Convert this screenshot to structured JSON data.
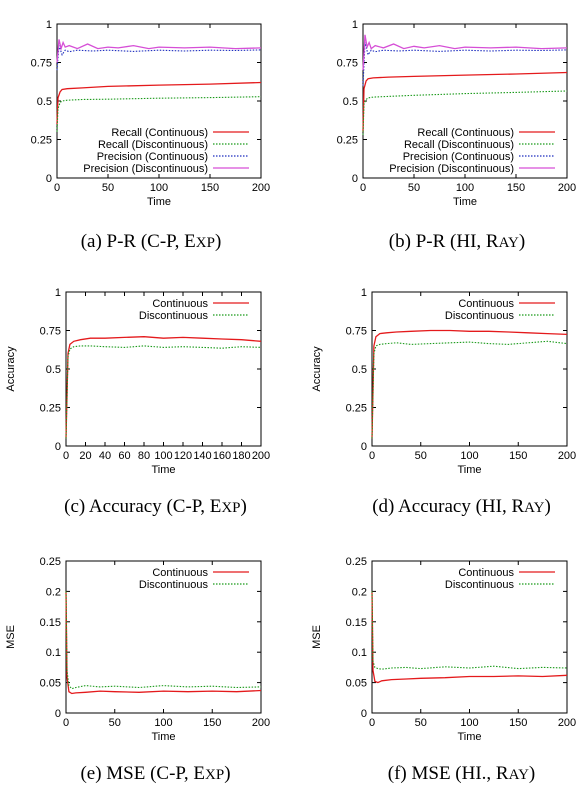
{
  "chart_data": [
    {
      "id": "a",
      "type": "line",
      "caption": "(a) P-R (C-P, Exp)",
      "xlabel": "Time",
      "ylabel": "",
      "xlim": [
        0,
        200
      ],
      "ylim": [
        0,
        1
      ],
      "xticks": [
        "0",
        "50",
        "100",
        "150",
        "200"
      ],
      "yticks": [
        "0",
        "0.25",
        "0.5",
        "0.75",
        "1"
      ],
      "xtick_values": [
        0,
        50,
        100,
        150,
        200
      ],
      "ytick_values": [
        0,
        0.25,
        0.5,
        0.75,
        1
      ],
      "legend": "bottom-right",
      "series": [
        {
          "name": "Recall (Continuous)",
          "color": "#e41a1c",
          "dash": "solid",
          "x": [
            0,
            1,
            3,
            5,
            10,
            25,
            50,
            100,
            150,
            200
          ],
          "y": [
            0.35,
            0.52,
            0.56,
            0.575,
            0.58,
            0.585,
            0.595,
            0.603,
            0.61,
            0.62
          ]
        },
        {
          "name": "Recall (Discontinuous)",
          "color": "#1a9a1a",
          "dash": "dot",
          "x": [
            0,
            1,
            3,
            5,
            10,
            25,
            50,
            100,
            150,
            200
          ],
          "y": [
            0.3,
            0.45,
            0.49,
            0.5,
            0.505,
            0.51,
            0.512,
            0.518,
            0.522,
            0.528
          ]
        },
        {
          "name": "Precision (Continuous)",
          "color": "#1f2fbf",
          "dash": "dot",
          "x": [
            0,
            2,
            5,
            8,
            12,
            20,
            35,
            50,
            75,
            100,
            125,
            150,
            175,
            200
          ],
          "y": [
            0.7,
            0.86,
            0.8,
            0.83,
            0.82,
            0.83,
            0.825,
            0.83,
            0.822,
            0.83,
            0.825,
            0.83,
            0.828,
            0.832
          ]
        },
        {
          "name": "Precision (Discontinuous)",
          "color": "#d64fd6",
          "dash": "solid",
          "x": [
            0,
            2,
            4,
            6,
            8,
            12,
            20,
            30,
            40,
            50,
            60,
            75,
            90,
            100,
            125,
            150,
            175,
            200
          ],
          "y": [
            0.75,
            0.9,
            0.84,
            0.88,
            0.85,
            0.86,
            0.84,
            0.87,
            0.84,
            0.85,
            0.845,
            0.86,
            0.84,
            0.85,
            0.845,
            0.85,
            0.84,
            0.845
          ]
        }
      ]
    },
    {
      "id": "b",
      "type": "line",
      "caption": "(b) P-R (HI, Ray)",
      "xlabel": "Time",
      "ylabel": "",
      "xlim": [
        0,
        200
      ],
      "ylim": [
        0,
        1
      ],
      "xticks": [
        "0",
        "50",
        "100",
        "150",
        "200"
      ],
      "yticks": [
        "0",
        "0.25",
        "0.5",
        "0.75",
        "1"
      ],
      "xtick_values": [
        0,
        50,
        100,
        150,
        200
      ],
      "ytick_values": [
        0,
        0.25,
        0.5,
        0.75,
        1
      ],
      "legend": "bottom-right",
      "series": [
        {
          "name": "Recall (Continuous)",
          "color": "#e41a1c",
          "dash": "solid",
          "x": [
            0,
            1,
            3,
            5,
            10,
            25,
            50,
            100,
            150,
            200
          ],
          "y": [
            0.3,
            0.58,
            0.63,
            0.645,
            0.65,
            0.655,
            0.66,
            0.668,
            0.675,
            0.685
          ]
        },
        {
          "name": "Recall (Discontinuous)",
          "color": "#1a9a1a",
          "dash": "dot",
          "x": [
            0,
            1,
            3,
            5,
            10,
            25,
            50,
            100,
            150,
            200
          ],
          "y": [
            0.28,
            0.48,
            0.51,
            0.52,
            0.525,
            0.53,
            0.537,
            0.548,
            0.556,
            0.565
          ]
        },
        {
          "name": "Precision (Continuous)",
          "color": "#1f2fbf",
          "dash": "dot",
          "x": [
            0,
            2,
            5,
            8,
            12,
            20,
            35,
            50,
            75,
            100,
            125,
            150,
            175,
            200
          ],
          "y": [
            0.6,
            0.88,
            0.8,
            0.83,
            0.82,
            0.83,
            0.825,
            0.83,
            0.822,
            0.83,
            0.825,
            0.83,
            0.828,
            0.832
          ]
        },
        {
          "name": "Precision (Discontinuous)",
          "color": "#d64fd6",
          "dash": "solid",
          "x": [
            0,
            2,
            4,
            6,
            8,
            12,
            20,
            30,
            40,
            50,
            60,
            75,
            90,
            100,
            125,
            150,
            175,
            200
          ],
          "y": [
            0.7,
            0.93,
            0.85,
            0.88,
            0.84,
            0.86,
            0.845,
            0.87,
            0.84,
            0.855,
            0.845,
            0.86,
            0.84,
            0.85,
            0.845,
            0.85,
            0.84,
            0.845
          ]
        }
      ]
    },
    {
      "id": "c",
      "type": "line",
      "caption": "(c) Accuracy (C-P, Exp)",
      "xlabel": "Time",
      "ylabel": "Accuracy",
      "xlim": [
        0,
        200
      ],
      "ylim": [
        0,
        1
      ],
      "xticks": [
        "0",
        "20",
        "40",
        "60",
        "80",
        "100",
        "120",
        "140",
        "160",
        "180",
        "200"
      ],
      "yticks": [
        "0",
        "0.25",
        "0.5",
        "0.75",
        "1"
      ],
      "xtick_values": [
        0,
        20,
        40,
        60,
        80,
        100,
        120,
        140,
        160,
        180,
        200
      ],
      "ytick_values": [
        0,
        0.25,
        0.5,
        0.75,
        1
      ],
      "legend": "top-right",
      "series": [
        {
          "name": "Continuous",
          "color": "#e41a1c",
          "dash": "solid",
          "x": [
            0,
            2,
            4,
            8,
            15,
            25,
            40,
            60,
            80,
            100,
            120,
            140,
            160,
            180,
            200
          ],
          "y": [
            0.05,
            0.6,
            0.66,
            0.68,
            0.69,
            0.7,
            0.7,
            0.705,
            0.71,
            0.7,
            0.705,
            0.7,
            0.695,
            0.69,
            0.68
          ]
        },
        {
          "name": "Discontinuous",
          "color": "#1a9a1a",
          "dash": "dot",
          "x": [
            0,
            2,
            4,
            8,
            15,
            25,
            40,
            60,
            80,
            100,
            120,
            140,
            160,
            180,
            200
          ],
          "y": [
            0.05,
            0.58,
            0.63,
            0.645,
            0.65,
            0.65,
            0.645,
            0.64,
            0.65,
            0.64,
            0.645,
            0.64,
            0.635,
            0.645,
            0.64
          ]
        }
      ]
    },
    {
      "id": "d",
      "type": "line",
      "caption": "(d) Accuracy (HI, Ray)",
      "xlabel": "Time",
      "ylabel": "Accuracy",
      "xlim": [
        0,
        200
      ],
      "ylim": [
        0,
        1
      ],
      "xticks": [
        "0",
        "50",
        "100",
        "150",
        "200"
      ],
      "yticks": [
        "0",
        "0.25",
        "0.5",
        "0.75",
        "1"
      ],
      "xtick_values": [
        0,
        50,
        100,
        150,
        200
      ],
      "ytick_values": [
        0,
        0.25,
        0.5,
        0.75,
        1
      ],
      "legend": "top-right",
      "series": [
        {
          "name": "Continuous",
          "color": "#e41a1c",
          "dash": "solid",
          "x": [
            0,
            2,
            4,
            8,
            15,
            25,
            40,
            60,
            80,
            100,
            120,
            140,
            160,
            180,
            200
          ],
          "y": [
            0.05,
            0.65,
            0.71,
            0.73,
            0.735,
            0.74,
            0.745,
            0.75,
            0.75,
            0.745,
            0.745,
            0.74,
            0.735,
            0.73,
            0.725
          ]
        },
        {
          "name": "Discontinuous",
          "color": "#1a9a1a",
          "dash": "dot",
          "x": [
            0,
            2,
            4,
            8,
            15,
            25,
            40,
            60,
            80,
            100,
            120,
            140,
            160,
            180,
            200
          ],
          "y": [
            0.05,
            0.6,
            0.65,
            0.66,
            0.665,
            0.67,
            0.66,
            0.665,
            0.67,
            0.675,
            0.665,
            0.66,
            0.67,
            0.68,
            0.665
          ]
        }
      ]
    },
    {
      "id": "e",
      "type": "line",
      "caption": "(e) MSE (C-P, Exp)",
      "xlabel": "Time",
      "ylabel": "MSE",
      "xlim": [
        0,
        200
      ],
      "ylim": [
        0,
        0.25
      ],
      "xticks": [
        "0",
        "50",
        "100",
        "150",
        "200"
      ],
      "yticks": [
        "0",
        "0.05",
        "0.1",
        "0.15",
        "0.2",
        "0.25"
      ],
      "xtick_values": [
        0,
        50,
        100,
        150,
        200
      ],
      "ytick_values": [
        0,
        0.05,
        0.1,
        0.15,
        0.2,
        0.25
      ],
      "legend": "top-right",
      "series": [
        {
          "name": "Continuous",
          "color": "#e41a1c",
          "dash": "solid",
          "x": [
            0,
            1,
            3,
            6,
            10,
            20,
            35,
            50,
            75,
            100,
            125,
            150,
            175,
            200
          ],
          "y": [
            0.2,
            0.06,
            0.035,
            0.032,
            0.033,
            0.034,
            0.036,
            0.035,
            0.034,
            0.036,
            0.035,
            0.036,
            0.035,
            0.037
          ]
        },
        {
          "name": "Discontinuous",
          "color": "#1a9a1a",
          "dash": "dot",
          "x": [
            0,
            1,
            3,
            6,
            10,
            20,
            35,
            50,
            75,
            100,
            125,
            150,
            175,
            200
          ],
          "y": [
            0.2,
            0.07,
            0.045,
            0.04,
            0.042,
            0.045,
            0.043,
            0.044,
            0.042,
            0.045,
            0.043,
            0.044,
            0.042,
            0.043
          ]
        }
      ]
    },
    {
      "id": "f",
      "type": "line",
      "caption": "(f) MSE (HI., Ray)",
      "xlabel": "Time",
      "ylabel": "MSE",
      "xlim": [
        0,
        200
      ],
      "ylim": [
        0,
        0.25
      ],
      "xticks": [
        "0",
        "50",
        "100",
        "150",
        "200"
      ],
      "yticks": [
        "0",
        "0.05",
        "0.1",
        "0.15",
        "0.2",
        "0.25"
      ],
      "xtick_values": [
        0,
        50,
        100,
        150,
        200
      ],
      "ytick_values": [
        0,
        0.05,
        0.1,
        0.15,
        0.2,
        0.25
      ],
      "legend": "top-right",
      "series": [
        {
          "name": "Continuous",
          "color": "#e41a1c",
          "dash": "solid",
          "x": [
            0,
            1,
            3,
            6,
            10,
            20,
            35,
            50,
            75,
            100,
            125,
            150,
            175,
            200
          ],
          "y": [
            0.2,
            0.07,
            0.052,
            0.05,
            0.053,
            0.055,
            0.056,
            0.057,
            0.058,
            0.06,
            0.06,
            0.061,
            0.06,
            0.062
          ]
        },
        {
          "name": "Discontinuous",
          "color": "#1a9a1a",
          "dash": "dot",
          "x": [
            0,
            1,
            3,
            6,
            10,
            20,
            35,
            50,
            75,
            100,
            125,
            150,
            175,
            200
          ],
          "y": [
            0.2,
            0.085,
            0.075,
            0.073,
            0.072,
            0.074,
            0.075,
            0.073,
            0.076,
            0.074,
            0.077,
            0.073,
            0.075,
            0.074
          ]
        }
      ]
    }
  ]
}
